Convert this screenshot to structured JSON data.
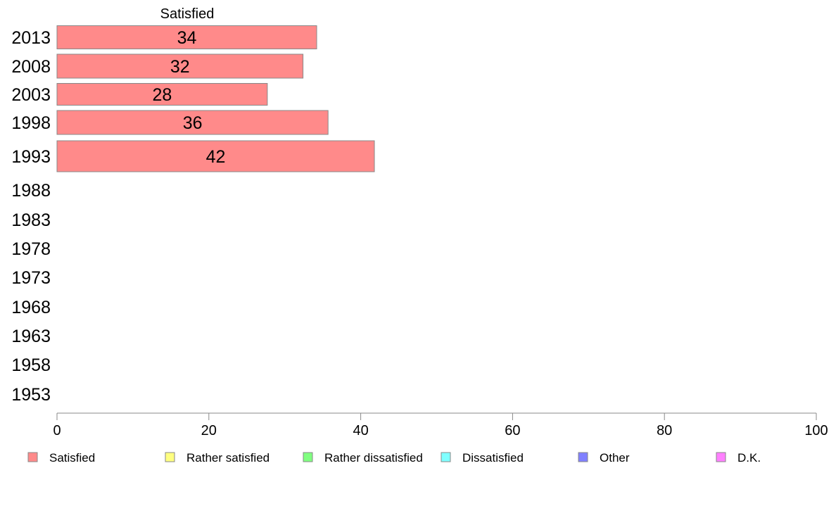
{
  "chart_data": {
    "type": "bar",
    "orientation": "horizontal",
    "stacked": true,
    "series_header": "Satisfied",
    "categories": [
      "2013",
      "2008",
      "2003",
      "1998",
      "1993",
      "1988",
      "1983",
      "1978",
      "1973",
      "1968",
      "1963",
      "1958",
      "1953"
    ],
    "series": [
      {
        "name": "Satisfied",
        "color": "#ff8a8a",
        "values": [
          34.2,
          32.4,
          27.7,
          35.7,
          41.8,
          null,
          null,
          null,
          null,
          null,
          null,
          null,
          null
        ],
        "labels": [
          "34",
          "32",
          "28",
          "36",
          "42",
          "",
          "",
          "",
          "",
          "",
          "",
          "",
          ""
        ]
      },
      {
        "name": "Rather satisfied",
        "color": "#ffff80",
        "values": [
          null,
          null,
          null,
          null,
          null,
          null,
          null,
          null,
          null,
          null,
          null,
          null,
          null
        ],
        "labels": []
      },
      {
        "name": "Rather dissatisfied",
        "color": "#80ff80",
        "values": [
          null,
          null,
          null,
          null,
          null,
          null,
          null,
          null,
          null,
          null,
          null,
          null,
          null
        ],
        "labels": []
      },
      {
        "name": "Dissatisfied",
        "color": "#80ffff",
        "values": [
          null,
          null,
          null,
          null,
          null,
          null,
          null,
          null,
          null,
          null,
          null,
          null,
          null
        ],
        "labels": []
      },
      {
        "name": "Other",
        "color": "#8080ff",
        "values": [
          null,
          null,
          null,
          null,
          null,
          null,
          null,
          null,
          null,
          null,
          null,
          null,
          null
        ],
        "labels": []
      },
      {
        "name": "D.K.",
        "color": "#ff80ff",
        "values": [
          null,
          null,
          null,
          null,
          null,
          null,
          null,
          null,
          null,
          null,
          null,
          null,
          null
        ],
        "labels": []
      }
    ],
    "xlim": [
      0,
      100
    ],
    "xticks": [
      "0",
      "20",
      "40",
      "60",
      "80",
      "100"
    ],
    "grid": false,
    "legend_position": "bottom"
  }
}
